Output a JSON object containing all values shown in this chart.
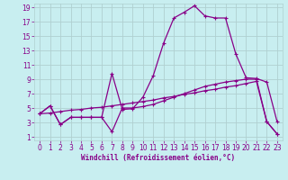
{
  "xlabel": "Windchill (Refroidissement éolien,°C)",
  "bg_color": "#c8eef0",
  "grid_color": "#b0d0d0",
  "line_color": "#880088",
  "xlim": [
    -0.5,
    23.5
  ],
  "ylim": [
    0.5,
    19.5
  ],
  "xticks": [
    0,
    1,
    2,
    3,
    4,
    5,
    6,
    7,
    8,
    9,
    10,
    11,
    12,
    13,
    14,
    15,
    16,
    17,
    18,
    19,
    20,
    21,
    22,
    23
  ],
  "yticks": [
    1,
    3,
    5,
    7,
    9,
    11,
    13,
    15,
    17,
    19
  ],
  "line1_x": [
    0,
    1,
    2,
    3,
    4,
    5,
    6,
    7,
    8,
    9,
    10,
    11,
    12,
    13,
    14,
    15,
    16,
    17,
    18,
    19,
    20,
    21,
    22,
    23
  ],
  "line1_y": [
    4.2,
    5.3,
    2.7,
    3.7,
    3.7,
    3.7,
    3.7,
    1.7,
    5.0,
    5.0,
    5.2,
    5.5,
    6.0,
    6.5,
    7.0,
    7.5,
    8.0,
    8.3,
    8.6,
    8.8,
    9.0,
    9.0,
    3.1,
    1.4
  ],
  "line2_x": [
    0,
    1,
    2,
    3,
    4,
    5,
    6,
    7,
    8,
    9,
    10,
    11,
    12,
    13,
    14,
    15,
    16,
    17,
    18,
    19,
    20,
    21,
    22,
    23
  ],
  "line2_y": [
    4.2,
    5.3,
    2.7,
    3.7,
    3.7,
    3.7,
    3.7,
    9.8,
    4.8,
    4.9,
    6.5,
    9.5,
    14.0,
    17.5,
    18.3,
    19.2,
    17.8,
    17.5,
    17.5,
    12.5,
    9.2,
    9.1,
    8.6,
    3.1
  ],
  "line3_x": [
    0,
    1,
    2,
    3,
    4,
    5,
    6,
    7,
    8,
    9,
    10,
    11,
    12,
    13,
    14,
    15,
    16,
    17,
    18,
    19,
    20,
    21,
    22,
    23
  ],
  "line3_y": [
    4.2,
    4.3,
    4.5,
    4.7,
    4.8,
    5.0,
    5.1,
    5.3,
    5.5,
    5.7,
    5.9,
    6.1,
    6.4,
    6.6,
    6.9,
    7.1,
    7.4,
    7.6,
    7.9,
    8.1,
    8.4,
    8.7,
    3.1,
    1.4
  ]
}
